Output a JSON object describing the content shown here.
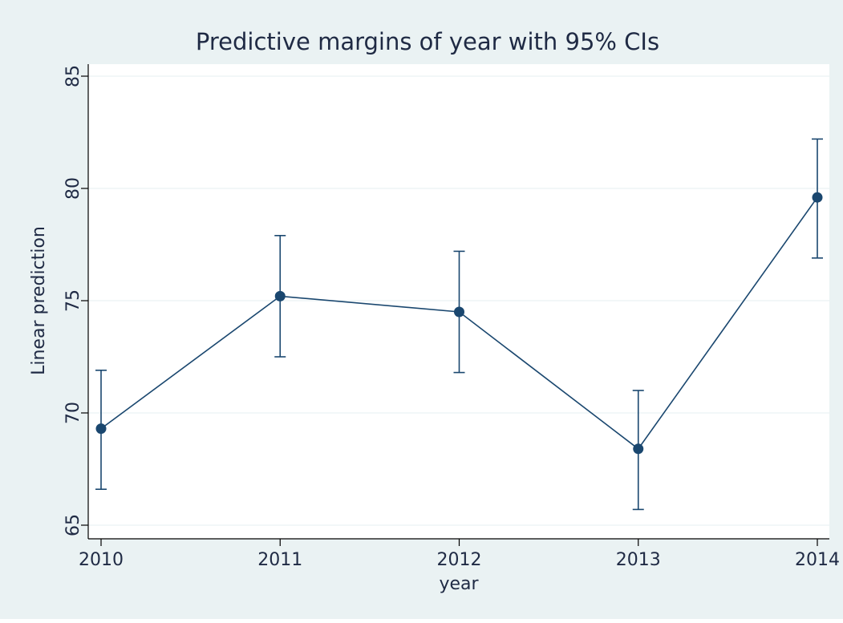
{
  "colors": {
    "outer_bg": "#EAF2F3",
    "plot_bg": "#FFFFFF",
    "grid": "#EAF2F3",
    "series": "#1A476F",
    "text": "#1F2A44",
    "axis": "#000000"
  },
  "chart_data": {
    "type": "line",
    "title": "Predictive margins of year with 95% CIs",
    "xlabel": "year",
    "ylabel": "Linear prediction",
    "x": [
      2010,
      2011,
      2012,
      2013,
      2014
    ],
    "x_tick_labels": [
      "2010",
      "2011",
      "2012",
      "2013",
      "2014"
    ],
    "y_ticks": [
      65,
      70,
      75,
      80,
      85
    ],
    "y_tick_labels": [
      "65",
      "70",
      "75",
      "80",
      "85"
    ],
    "ylim": [
      65,
      85
    ],
    "grid": "horizontal",
    "series": [
      {
        "values": [
          69.3,
          75.2,
          74.5,
          68.4,
          79.6
        ],
        "ci_lower": [
          66.6,
          72.5,
          71.8,
          65.7,
          76.9
        ],
        "ci_upper": [
          71.9,
          77.9,
          77.2,
          71.0,
          82.2
        ],
        "marker": "circle"
      }
    ]
  }
}
